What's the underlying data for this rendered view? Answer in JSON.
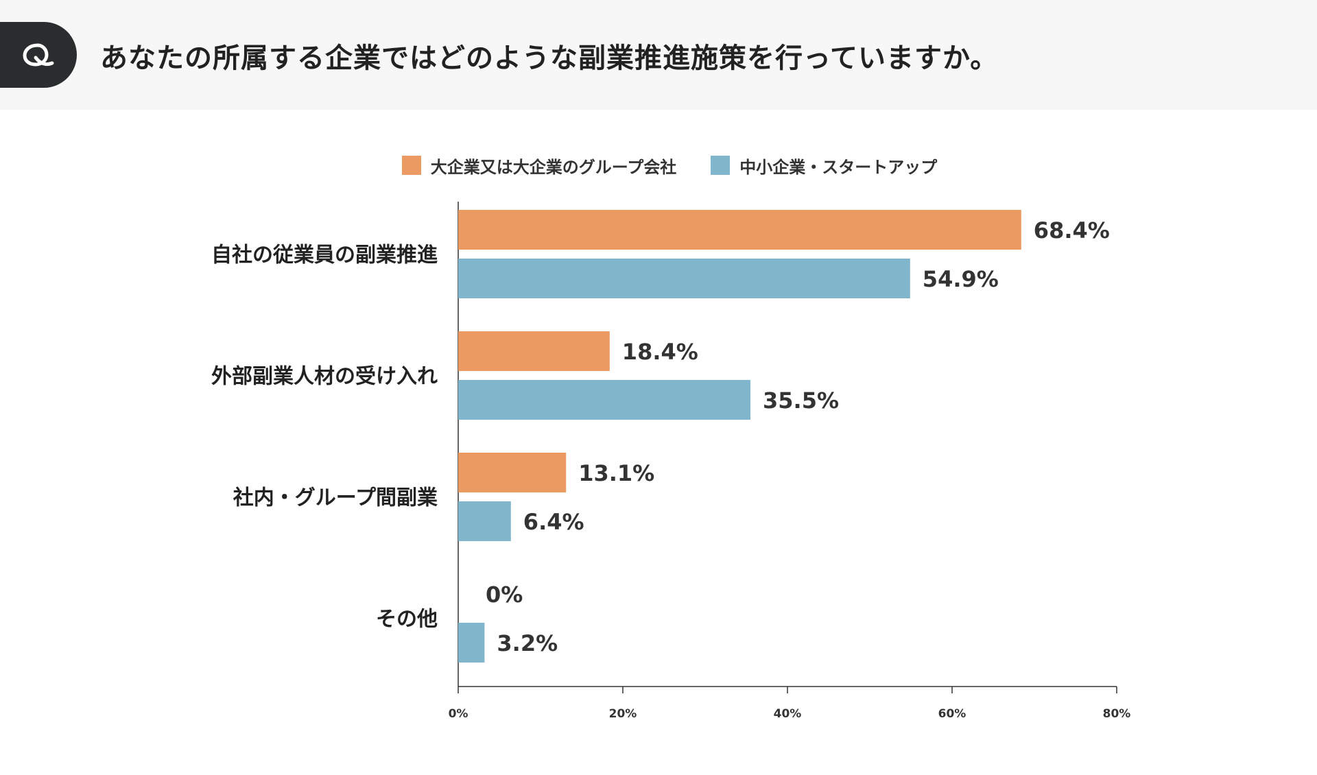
{
  "question": {
    "badge_icon": "q-icon",
    "text": "あなたの所属する企業ではどのような副業推進施策を行っていますか。"
  },
  "colors": {
    "large": "#eb9a61",
    "small": "#7fb6cc",
    "header_bg": "#f7f7f7",
    "badge_bg": "#2a2d2d"
  },
  "chart_data": {
    "type": "bar",
    "orientation": "horizontal",
    "title": "",
    "categories": [
      "自社の従業員の副業推進",
      "外部副業人材の受け入れ",
      "社内・グループ間副業",
      "その他"
    ],
    "series": [
      {
        "name": "大企業又は大企業のグループ会社",
        "color": "#eb9a61",
        "values": [
          68.4,
          18.4,
          13.1,
          0
        ],
        "labels": [
          "68.4%",
          "18.4%",
          "13.1%",
          "0%"
        ]
      },
      {
        "name": "中小企業・スタートアップ",
        "color": "#7fb6cc",
        "values": [
          54.9,
          35.5,
          6.4,
          3.2
        ],
        "labels": [
          "54.9%",
          "35.5%",
          "6.4%",
          "3.2%"
        ]
      }
    ],
    "xlim": [
      0,
      80
    ],
    "xticks": [
      0,
      20,
      40,
      60,
      80
    ],
    "xtick_labels": [
      "0%",
      "20%",
      "40%",
      "60%",
      "80%"
    ],
    "legend_position": "top-center",
    "grid": false
  }
}
